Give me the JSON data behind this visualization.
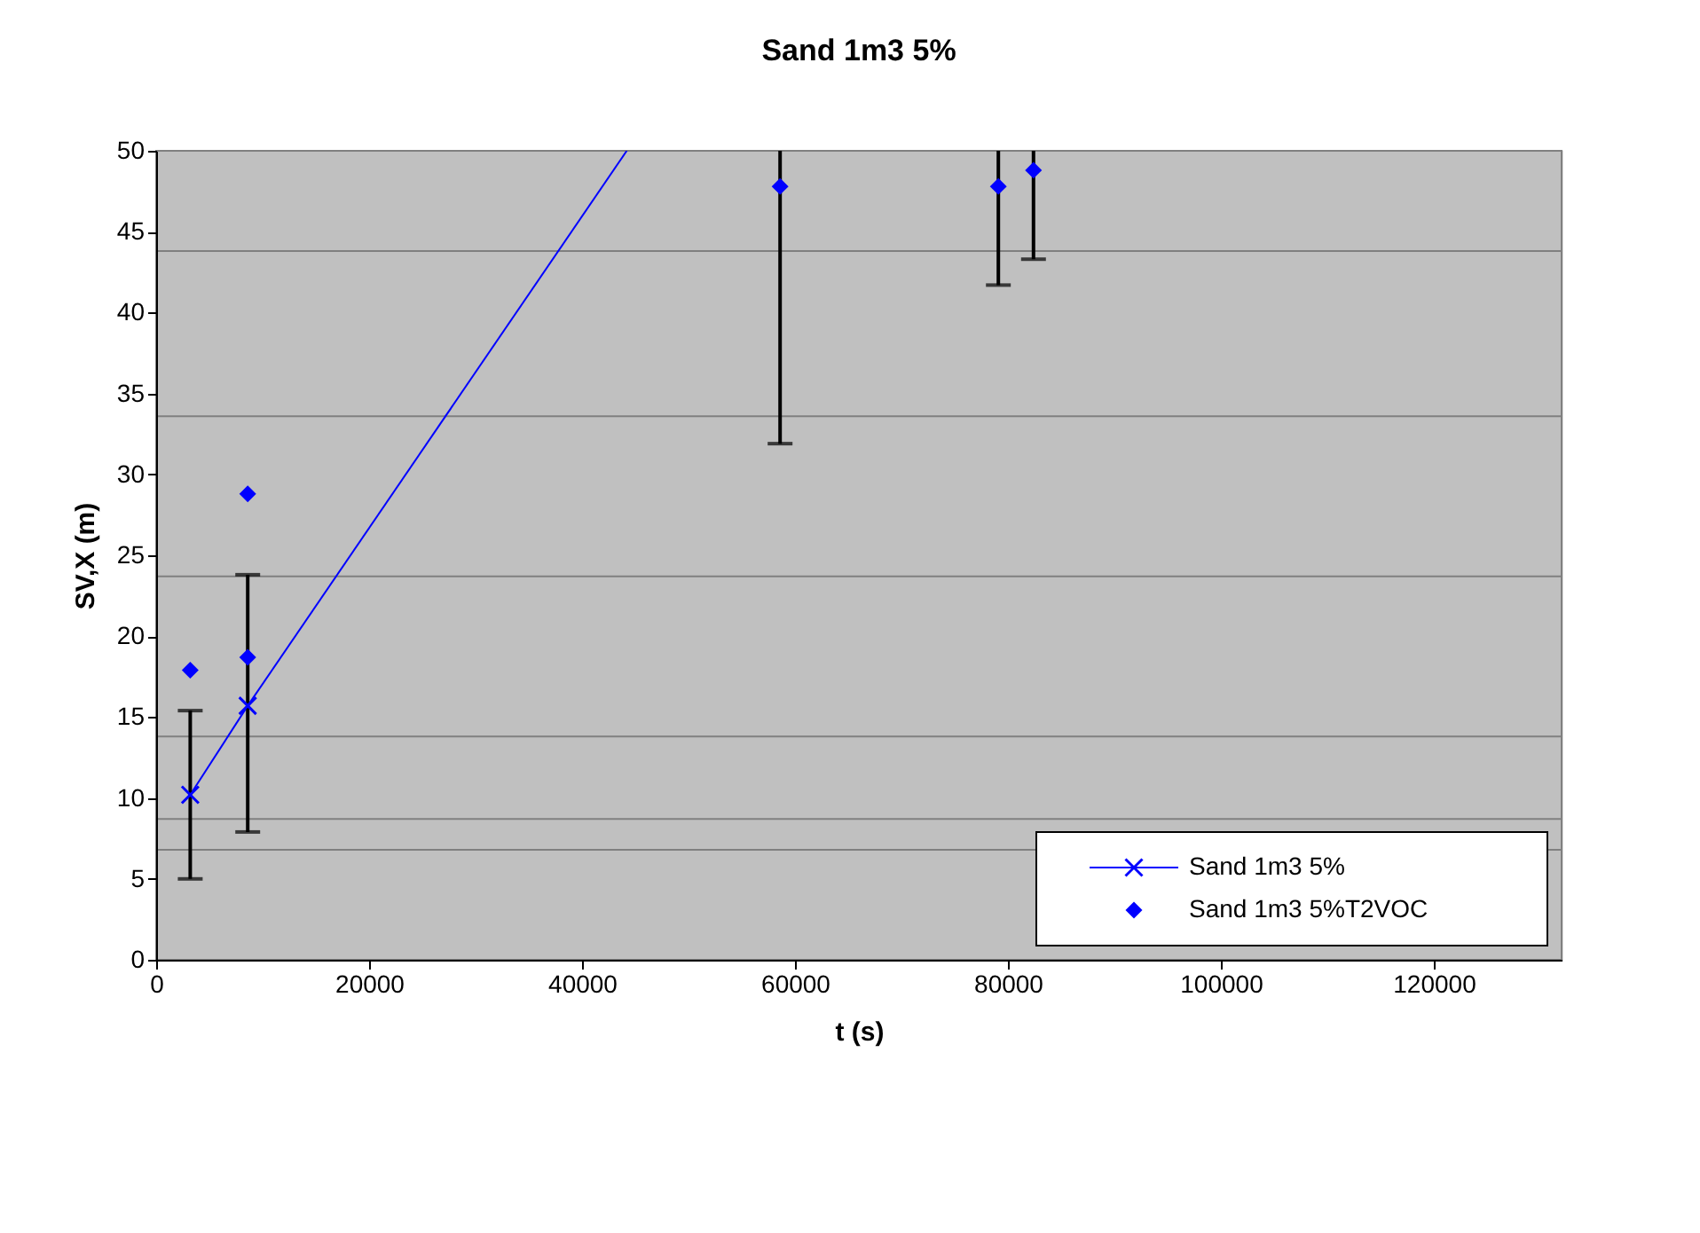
{
  "chart_data": {
    "type": "scatter",
    "title": "Sand 1m3 5%",
    "xlabel": "t (s)",
    "ylabel": "SV,X (m)",
    "xlim": [
      0,
      132000
    ],
    "xticks": [
      0,
      20000,
      40000,
      60000,
      80000,
      100000,
      120000
    ],
    "ylim": [
      0,
      50
    ],
    "yticks": [
      0,
      5,
      10,
      15,
      20,
      25,
      30,
      35,
      40,
      45,
      50
    ],
    "grid": false,
    "legend": "bottom right",
    "series": [
      {
        "name": "Sand 1m3 5%",
        "type": "line",
        "color": "#0000ff",
        "marker": "cross",
        "x": [
          3200,
          8600
        ],
        "values": [
          10.2,
          15.7
        ],
        "errors": [
          [
            5.0,
            15.4
          ],
          [
            7.9,
            23.8
          ]
        ]
      },
      {
        "name": "Sand 1m3 5%T2VOC",
        "type": "scatter",
        "color": "#0000ff",
        "marker": "diamond",
        "x": [
          3200,
          8600,
          8600,
          58600,
          79100,
          82400
        ],
        "values": [
          17.9,
          28.8,
          18.7,
          47.8,
          47.8,
          48.8
        ],
        "errors": [
          null,
          null,
          null,
          [
            31.9,
            50
          ],
          [
            41.7,
            50
          ],
          [
            43.3,
            50
          ]
        ]
      },
      {
        "type": "line",
        "color": "#0000ff",
        "marker": "none",
        "x": [
          8600,
          44200
        ],
        "values": [
          15.7,
          50
        ]
      }
    ],
    "ref_lines": [
      {
        "axis": "y",
        "value": 43.8,
        "color": "#808080"
      },
      {
        "axis": "y",
        "value": 33.6,
        "color": "#808080"
      },
      {
        "axis": "y",
        "value": 23.7,
        "color": "#808080"
      },
      {
        "axis": "y",
        "value": 13.8,
        "color": "#808080"
      },
      {
        "axis": "y",
        "value": 8.7,
        "color": "#808080"
      },
      {
        "axis": "y",
        "value": 6.8,
        "color": "#808080"
      }
    ]
  }
}
